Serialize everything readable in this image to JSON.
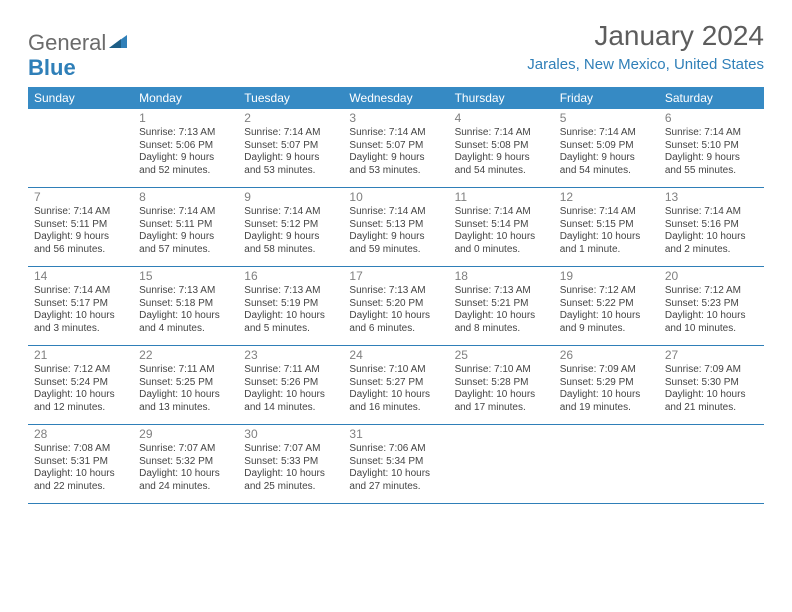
{
  "brand": {
    "general": "General",
    "blue": "Blue"
  },
  "title": "January 2024",
  "location": "Jarales, New Mexico, United States",
  "colors": {
    "accent": "#368ac4",
    "rule": "#2f7fb8",
    "text": "#444444",
    "muted": "#808080",
    "title": "#5d5d5d",
    "bg": "#ffffff"
  },
  "dow": [
    "Sunday",
    "Monday",
    "Tuesday",
    "Wednesday",
    "Thursday",
    "Friday",
    "Saturday"
  ],
  "weeks": [
    [
      null,
      {
        "n": "1",
        "sr": "Sunrise: 7:13 AM",
        "ss": "Sunset: 5:06 PM",
        "d1": "Daylight: 9 hours",
        "d2": "and 52 minutes."
      },
      {
        "n": "2",
        "sr": "Sunrise: 7:14 AM",
        "ss": "Sunset: 5:07 PM",
        "d1": "Daylight: 9 hours",
        "d2": "and 53 minutes."
      },
      {
        "n": "3",
        "sr": "Sunrise: 7:14 AM",
        "ss": "Sunset: 5:07 PM",
        "d1": "Daylight: 9 hours",
        "d2": "and 53 minutes."
      },
      {
        "n": "4",
        "sr": "Sunrise: 7:14 AM",
        "ss": "Sunset: 5:08 PM",
        "d1": "Daylight: 9 hours",
        "d2": "and 54 minutes."
      },
      {
        "n": "5",
        "sr": "Sunrise: 7:14 AM",
        "ss": "Sunset: 5:09 PM",
        "d1": "Daylight: 9 hours",
        "d2": "and 54 minutes."
      },
      {
        "n": "6",
        "sr": "Sunrise: 7:14 AM",
        "ss": "Sunset: 5:10 PM",
        "d1": "Daylight: 9 hours",
        "d2": "and 55 minutes."
      }
    ],
    [
      {
        "n": "7",
        "sr": "Sunrise: 7:14 AM",
        "ss": "Sunset: 5:11 PM",
        "d1": "Daylight: 9 hours",
        "d2": "and 56 minutes."
      },
      {
        "n": "8",
        "sr": "Sunrise: 7:14 AM",
        "ss": "Sunset: 5:11 PM",
        "d1": "Daylight: 9 hours",
        "d2": "and 57 minutes."
      },
      {
        "n": "9",
        "sr": "Sunrise: 7:14 AM",
        "ss": "Sunset: 5:12 PM",
        "d1": "Daylight: 9 hours",
        "d2": "and 58 minutes."
      },
      {
        "n": "10",
        "sr": "Sunrise: 7:14 AM",
        "ss": "Sunset: 5:13 PM",
        "d1": "Daylight: 9 hours",
        "d2": "and 59 minutes."
      },
      {
        "n": "11",
        "sr": "Sunrise: 7:14 AM",
        "ss": "Sunset: 5:14 PM",
        "d1": "Daylight: 10 hours",
        "d2": "and 0 minutes."
      },
      {
        "n": "12",
        "sr": "Sunrise: 7:14 AM",
        "ss": "Sunset: 5:15 PM",
        "d1": "Daylight: 10 hours",
        "d2": "and 1 minute."
      },
      {
        "n": "13",
        "sr": "Sunrise: 7:14 AM",
        "ss": "Sunset: 5:16 PM",
        "d1": "Daylight: 10 hours",
        "d2": "and 2 minutes."
      }
    ],
    [
      {
        "n": "14",
        "sr": "Sunrise: 7:14 AM",
        "ss": "Sunset: 5:17 PM",
        "d1": "Daylight: 10 hours",
        "d2": "and 3 minutes."
      },
      {
        "n": "15",
        "sr": "Sunrise: 7:13 AM",
        "ss": "Sunset: 5:18 PM",
        "d1": "Daylight: 10 hours",
        "d2": "and 4 minutes."
      },
      {
        "n": "16",
        "sr": "Sunrise: 7:13 AM",
        "ss": "Sunset: 5:19 PM",
        "d1": "Daylight: 10 hours",
        "d2": "and 5 minutes."
      },
      {
        "n": "17",
        "sr": "Sunrise: 7:13 AM",
        "ss": "Sunset: 5:20 PM",
        "d1": "Daylight: 10 hours",
        "d2": "and 6 minutes."
      },
      {
        "n": "18",
        "sr": "Sunrise: 7:13 AM",
        "ss": "Sunset: 5:21 PM",
        "d1": "Daylight: 10 hours",
        "d2": "and 8 minutes."
      },
      {
        "n": "19",
        "sr": "Sunrise: 7:12 AM",
        "ss": "Sunset: 5:22 PM",
        "d1": "Daylight: 10 hours",
        "d2": "and 9 minutes."
      },
      {
        "n": "20",
        "sr": "Sunrise: 7:12 AM",
        "ss": "Sunset: 5:23 PM",
        "d1": "Daylight: 10 hours",
        "d2": "and 10 minutes."
      }
    ],
    [
      {
        "n": "21",
        "sr": "Sunrise: 7:12 AM",
        "ss": "Sunset: 5:24 PM",
        "d1": "Daylight: 10 hours",
        "d2": "and 12 minutes."
      },
      {
        "n": "22",
        "sr": "Sunrise: 7:11 AM",
        "ss": "Sunset: 5:25 PM",
        "d1": "Daylight: 10 hours",
        "d2": "and 13 minutes."
      },
      {
        "n": "23",
        "sr": "Sunrise: 7:11 AM",
        "ss": "Sunset: 5:26 PM",
        "d1": "Daylight: 10 hours",
        "d2": "and 14 minutes."
      },
      {
        "n": "24",
        "sr": "Sunrise: 7:10 AM",
        "ss": "Sunset: 5:27 PM",
        "d1": "Daylight: 10 hours",
        "d2": "and 16 minutes."
      },
      {
        "n": "25",
        "sr": "Sunrise: 7:10 AM",
        "ss": "Sunset: 5:28 PM",
        "d1": "Daylight: 10 hours",
        "d2": "and 17 minutes."
      },
      {
        "n": "26",
        "sr": "Sunrise: 7:09 AM",
        "ss": "Sunset: 5:29 PM",
        "d1": "Daylight: 10 hours",
        "d2": "and 19 minutes."
      },
      {
        "n": "27",
        "sr": "Sunrise: 7:09 AM",
        "ss": "Sunset: 5:30 PM",
        "d1": "Daylight: 10 hours",
        "d2": "and 21 minutes."
      }
    ],
    [
      {
        "n": "28",
        "sr": "Sunrise: 7:08 AM",
        "ss": "Sunset: 5:31 PM",
        "d1": "Daylight: 10 hours",
        "d2": "and 22 minutes."
      },
      {
        "n": "29",
        "sr": "Sunrise: 7:07 AM",
        "ss": "Sunset: 5:32 PM",
        "d1": "Daylight: 10 hours",
        "d2": "and 24 minutes."
      },
      {
        "n": "30",
        "sr": "Sunrise: 7:07 AM",
        "ss": "Sunset: 5:33 PM",
        "d1": "Daylight: 10 hours",
        "d2": "and 25 minutes."
      },
      {
        "n": "31",
        "sr": "Sunrise: 7:06 AM",
        "ss": "Sunset: 5:34 PM",
        "d1": "Daylight: 10 hours",
        "d2": "and 27 minutes."
      },
      null,
      null,
      null
    ]
  ]
}
